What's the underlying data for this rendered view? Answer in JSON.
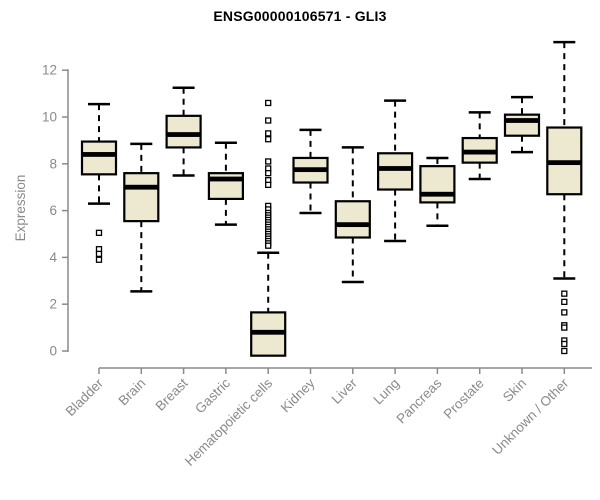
{
  "page": {
    "background": "#ffffff"
  },
  "chart_data": {
    "type": "boxplot",
    "title": "ENSG00000106571 - GLI3",
    "ylabel": "Expression",
    "ylim": [
      0,
      12
    ],
    "yticks": [
      0,
      2,
      4,
      6,
      8,
      10,
      12
    ],
    "grid": false,
    "legend": "none",
    "box_fill": "#EDE8D0",
    "box_stroke": "#000000",
    "axis_color": "#8a8a8a",
    "categories": [
      "Bladder",
      "Brain",
      "Breast",
      "Gastric",
      "Hematopoietic cells",
      "Kidney",
      "Liver",
      "Lung",
      "Pancreas",
      "Prostate",
      "Skin",
      "Unknown / Other"
    ],
    "series": [
      {
        "category": "Bladder",
        "min": 6.3,
        "q1": 7.55,
        "median": 8.4,
        "q3": 8.95,
        "max": 10.55,
        "outliers": [
          5.05,
          4.35,
          4.15,
          3.9
        ]
      },
      {
        "category": "Brain",
        "min": 2.55,
        "q1": 5.55,
        "median": 7.0,
        "q3": 7.6,
        "max": 8.85,
        "outliers": []
      },
      {
        "category": "Breast",
        "min": 7.5,
        "q1": 8.7,
        "median": 9.25,
        "q3": 10.05,
        "max": 11.25,
        "outliers": []
      },
      {
        "category": "Gastric",
        "min": 5.4,
        "q1": 6.5,
        "median": 7.35,
        "q3": 7.6,
        "max": 8.9,
        "outliers": []
      },
      {
        "category": "Hematopoietic cells",
        "min": -0.2,
        "q1": -0.2,
        "median": 0.8,
        "q3": 1.65,
        "max": 4.2,
        "outliers": [
          10.6,
          9.85,
          9.3,
          9.05,
          8.1,
          7.8,
          7.6,
          7.3,
          7.1,
          6.2,
          6.05,
          5.9,
          5.8,
          5.7,
          5.6,
          5.5,
          5.4,
          5.3,
          5.2,
          5.1,
          5.0,
          4.9,
          4.8,
          4.7,
          4.6,
          4.5
        ]
      },
      {
        "category": "Kidney",
        "min": 5.9,
        "q1": 7.2,
        "median": 7.75,
        "q3": 8.25,
        "max": 9.45,
        "outliers": []
      },
      {
        "category": "Liver",
        "min": 2.95,
        "q1": 4.85,
        "median": 5.4,
        "q3": 6.4,
        "max": 8.7,
        "outliers": []
      },
      {
        "category": "Lung",
        "min": 4.7,
        "q1": 6.9,
        "median": 7.8,
        "q3": 8.45,
        "max": 10.7,
        "outliers": []
      },
      {
        "category": "Pancreas",
        "min": 5.35,
        "q1": 6.35,
        "median": 6.7,
        "q3": 7.9,
        "max": 8.25,
        "outliers": []
      },
      {
        "category": "Prostate",
        "min": 7.35,
        "q1": 8.05,
        "median": 8.5,
        "q3": 9.1,
        "max": 10.2,
        "outliers": []
      },
      {
        "category": "Skin",
        "min": 8.5,
        "q1": 9.2,
        "median": 9.85,
        "q3": 10.1,
        "max": 10.85,
        "outliers": []
      },
      {
        "category": "Unknown / Other",
        "min": 3.1,
        "q1": 6.7,
        "median": 8.05,
        "q3": 9.55,
        "max": 13.2,
        "outliers": [
          2.45,
          2.1,
          1.65,
          1.1,
          1.0,
          0.45,
          0.3,
          0.0
        ]
      }
    ]
  }
}
